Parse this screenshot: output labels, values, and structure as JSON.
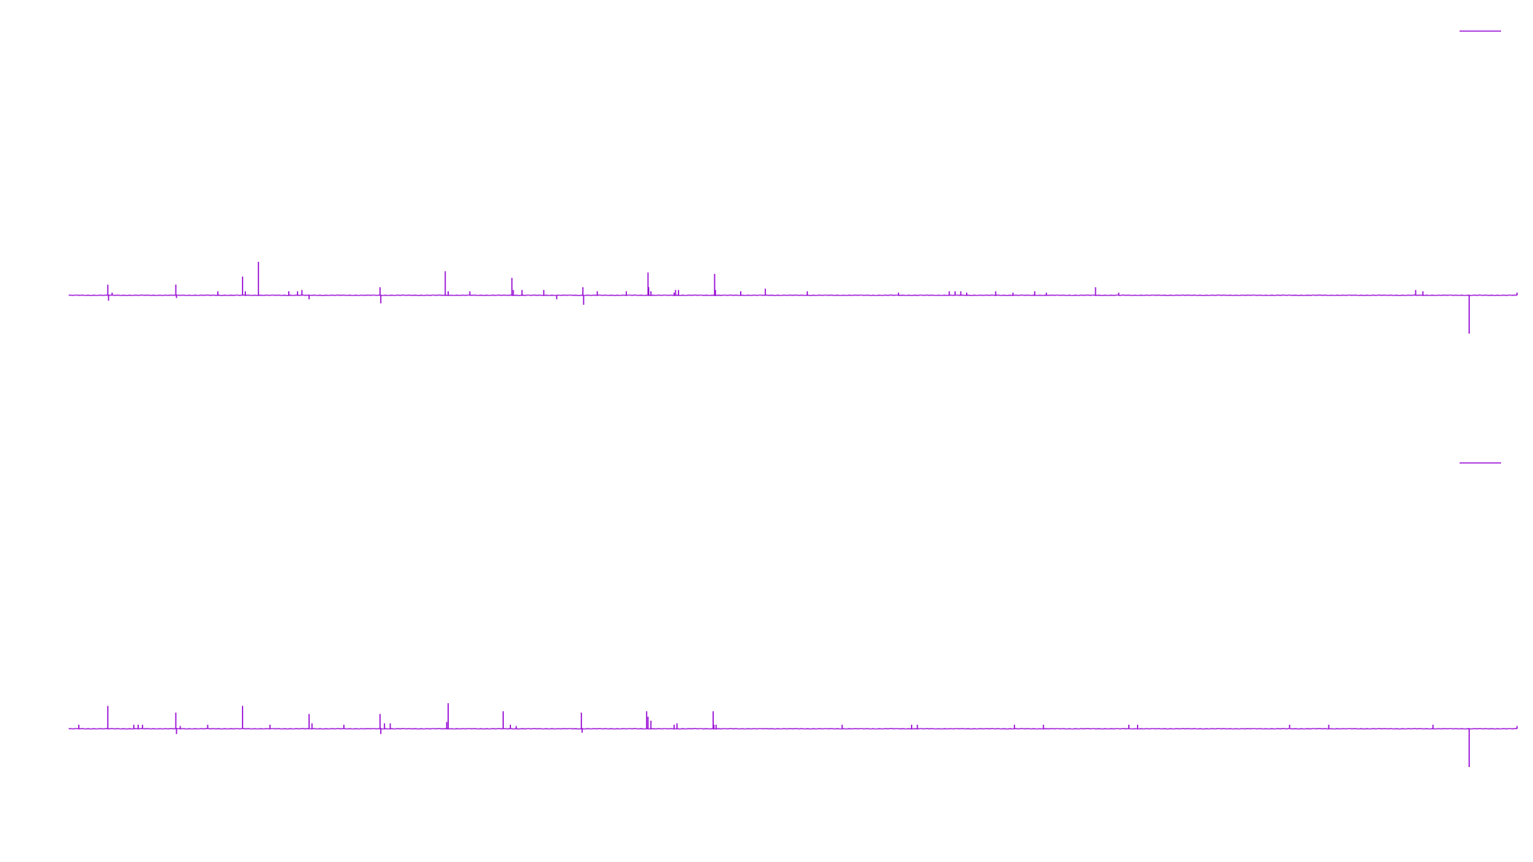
{
  "colors": {
    "trace": "#9400d3",
    "background": "#ffffff"
  },
  "chart_data": {
    "type": "line",
    "grid": false,
    "axes_visible": false,
    "title": "",
    "xlabel": "",
    "ylabel": "",
    "xlim": [
      0,
      1000
    ],
    "panels": [
      {
        "id": "top",
        "ylim": [
          -3.5,
          25
        ],
        "baseline": 0,
        "legend_marker": true,
        "spikes": [
          [
            27,
            8
          ],
          [
            27.5,
            -4
          ],
          [
            30,
            2
          ],
          [
            74,
            8
          ],
          [
            74.5,
            -2
          ],
          [
            103,
            3
          ],
          [
            120,
            14
          ],
          [
            122,
            3
          ],
          [
            131,
            25
          ],
          [
            152,
            3
          ],
          [
            158,
            3
          ],
          [
            161,
            4
          ],
          [
            166,
            -3
          ],
          [
            215,
            6
          ],
          [
            215.5,
            -6
          ],
          [
            260,
            18
          ],
          [
            262,
            3
          ],
          [
            277,
            3
          ],
          [
            306,
            13
          ],
          [
            307,
            4
          ],
          [
            313,
            4
          ],
          [
            328,
            4
          ],
          [
            337,
            -3
          ],
          [
            355,
            6
          ],
          [
            355.5,
            -7
          ],
          [
            365,
            3
          ],
          [
            385,
            3
          ],
          [
            400,
            17
          ],
          [
            400.5,
            6
          ],
          [
            402,
            3
          ],
          [
            418,
            2
          ],
          [
            419,
            4
          ],
          [
            421,
            4
          ],
          [
            446,
            16
          ],
          [
            446.5,
            4
          ],
          [
            464,
            3
          ],
          [
            481,
            5
          ],
          [
            510,
            3
          ],
          [
            573,
            2
          ],
          [
            608,
            3
          ],
          [
            612,
            3
          ],
          [
            616,
            3
          ],
          [
            620,
            2
          ],
          [
            640,
            3
          ],
          [
            652,
            2
          ],
          [
            667,
            3
          ],
          [
            675,
            2
          ],
          [
            709,
            6
          ],
          [
            725,
            2
          ],
          [
            930,
            4
          ],
          [
            935,
            3
          ],
          [
            1000,
            2
          ]
        ]
      },
      {
        "id": "bottom",
        "ylim": [
          -12,
          25
        ],
        "baseline": 0,
        "legend_marker": true,
        "spikes": [
          [
            7,
            3
          ],
          [
            27,
            17
          ],
          [
            45,
            3
          ],
          [
            48,
            3
          ],
          [
            51,
            3
          ],
          [
            74,
            12
          ],
          [
            74.5,
            -4
          ],
          [
            77,
            2
          ],
          [
            96,
            3
          ],
          [
            120,
            17
          ],
          [
            139,
            3
          ],
          [
            166,
            11
          ],
          [
            168,
            4
          ],
          [
            190,
            3
          ],
          [
            215,
            11
          ],
          [
            215.5,
            -4
          ],
          [
            218,
            4
          ],
          [
            222,
            4
          ],
          [
            261,
            5
          ],
          [
            262,
            19
          ],
          [
            300,
            13
          ],
          [
            305,
            3
          ],
          [
            309,
            2
          ],
          [
            354,
            12
          ],
          [
            354.5,
            -3
          ],
          [
            399,
            13
          ],
          [
            400,
            9
          ],
          [
            402,
            6
          ],
          [
            418,
            3
          ],
          [
            420,
            4
          ],
          [
            445,
            13
          ],
          [
            445.5,
            3
          ],
          [
            447,
            3
          ],
          [
            534,
            3
          ],
          [
            582,
            3
          ],
          [
            586,
            3
          ],
          [
            653,
            3
          ],
          [
            673,
            3
          ],
          [
            732,
            3
          ],
          [
            738,
            3
          ],
          [
            843,
            3
          ],
          [
            870,
            3
          ],
          [
            942,
            3
          ],
          [
            1000,
            2
          ]
        ]
      }
    ],
    "shared_negative_spike": {
      "x": 967,
      "top_value": -3.5,
      "bottom_value": -12
    }
  }
}
